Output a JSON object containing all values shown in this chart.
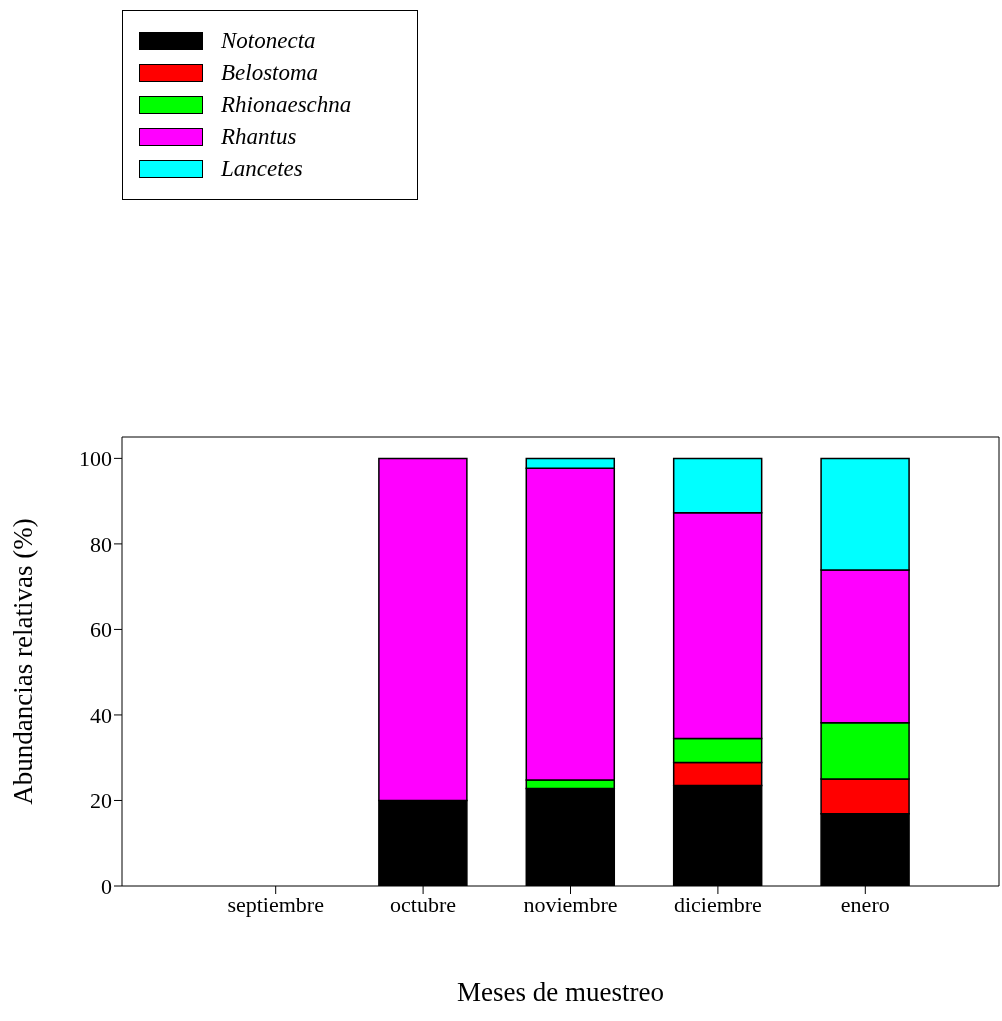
{
  "chart_data": {
    "type": "bar",
    "stacked": true,
    "xlabel": "Meses de muestreo",
    "ylabel": "Abundancias relativas (%)",
    "categories": [
      "septiembre",
      "octubre",
      "noviembre",
      "diciembre",
      "enero"
    ],
    "series": [
      {
        "name": "Notonecta",
        "color": "#000000",
        "values": [
          null,
          20,
          22.8,
          23.5,
          16.9
        ]
      },
      {
        "name": "Belostoma",
        "color": "#ff0000",
        "values": [
          null,
          0,
          0,
          5.4,
          8.1
        ]
      },
      {
        "name": "Rhionaeschna",
        "color": "#00ff00",
        "values": [
          null,
          0,
          2,
          5.6,
          13.2
        ]
      },
      {
        "name": "Rhantus",
        "color": "#ff00ff",
        "values": [
          null,
          80,
          72.9,
          52.8,
          35.7
        ]
      },
      {
        "name": "Lancetes",
        "color": "#00ffff",
        "values": [
          null,
          0,
          2.3,
          12.7,
          26.1
        ]
      }
    ],
    "ylim": [
      0,
      105
    ],
    "yticks": [
      0,
      20,
      40,
      60,
      80,
      100
    ],
    "legend": "top left"
  }
}
